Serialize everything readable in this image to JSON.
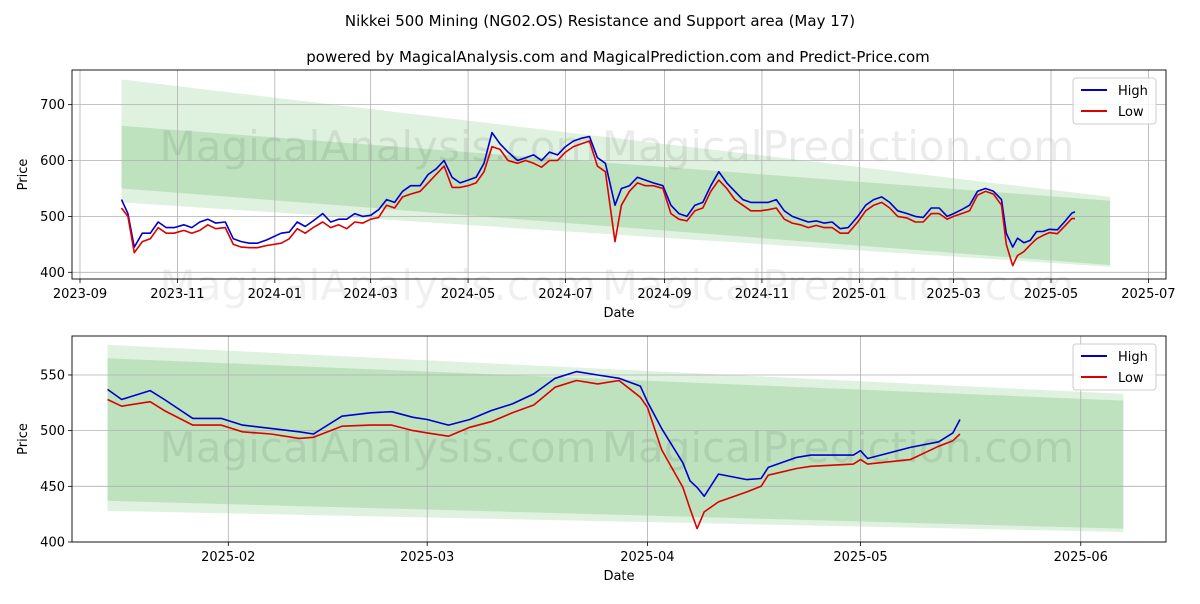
{
  "title": "Nikkei 500 Mining (NG02.OS) Resistance and Support area (May 17)",
  "subtitle": "powered by MagicalAnalysis.com and MagicalPrediction.com and Predict-Price.com",
  "watermark": [
    "MagicalAnalysis.com",
    "MagicalPrediction.com"
  ],
  "colors": {
    "high": "#0000cc",
    "low": "#dd0000",
    "band": "#7fc77f"
  },
  "chart_data": [
    {
      "type": "line",
      "xlabel": "Date",
      "ylabel": "Price",
      "xlim": [
        "2023-08-27",
        "2025-07-12"
      ],
      "ylim": [
        388,
        762
      ],
      "xticks": [
        "2023-09",
        "2023-11",
        "2024-01",
        "2024-03",
        "2024-05",
        "2024-07",
        "2024-09",
        "2024-11",
        "2025-01",
        "2025-03",
        "2025-05",
        "2025-07"
      ],
      "yticks": [
        400,
        500,
        600,
        700
      ],
      "grid": true,
      "legend": "top-right",
      "series": [
        {
          "name": "High",
          "x": [
            "2023-09-27",
            "2023-10-01",
            "2023-10-05",
            "2023-10-10",
            "2023-10-15",
            "2023-10-20",
            "2023-10-25",
            "2023-10-30",
            "2023-11-05",
            "2023-11-10",
            "2023-11-15",
            "2023-11-20",
            "2023-11-25",
            "2023-12-01",
            "2023-12-06",
            "2023-12-11",
            "2023-12-16",
            "2023-12-21",
            "2023-12-27",
            "2024-01-05",
            "2024-01-10",
            "2024-01-15",
            "2024-01-20",
            "2024-01-25",
            "2024-01-31",
            "2024-02-05",
            "2024-02-10",
            "2024-02-15",
            "2024-02-20",
            "2024-02-25",
            "2024-03-01",
            "2024-03-06",
            "2024-03-11",
            "2024-03-16",
            "2024-03-21",
            "2024-03-26",
            "2024-04-01",
            "2024-04-06",
            "2024-04-11",
            "2024-04-16",
            "2024-04-21",
            "2024-04-26",
            "2024-05-01",
            "2024-05-06",
            "2024-05-11",
            "2024-05-16",
            "2024-05-21",
            "2024-05-26",
            "2024-06-01",
            "2024-06-06",
            "2024-06-11",
            "2024-06-16",
            "2024-06-21",
            "2024-06-26",
            "2024-07-01",
            "2024-07-06",
            "2024-07-11",
            "2024-07-16",
            "2024-07-21",
            "2024-07-26",
            "2024-08-01",
            "2024-08-05",
            "2024-08-10",
            "2024-08-15",
            "2024-08-20",
            "2024-08-25",
            "2024-08-31",
            "2024-09-05",
            "2024-09-10",
            "2024-09-15",
            "2024-09-20",
            "2024-09-25",
            "2024-09-30",
            "2024-10-05",
            "2024-10-10",
            "2024-10-15",
            "2024-10-20",
            "2024-10-25",
            "2024-10-31",
            "2024-11-05",
            "2024-11-10",
            "2024-11-15",
            "2024-11-20",
            "2024-11-25",
            "2024-11-30",
            "2024-12-05",
            "2024-12-10",
            "2024-12-15",
            "2024-12-20",
            "2024-12-25",
            "2024-12-31",
            "2025-01-05",
            "2025-01-10",
            "2025-01-15",
            "2025-01-20",
            "2025-01-25",
            "2025-01-31",
            "2025-02-05",
            "2025-02-10",
            "2025-02-15",
            "2025-02-20",
            "2025-02-25",
            "2025-03-01",
            "2025-03-06",
            "2025-03-11",
            "2025-03-16",
            "2025-03-21",
            "2025-03-26",
            "2025-03-31",
            "2025-04-03",
            "2025-04-07",
            "2025-04-10",
            "2025-04-14",
            "2025-04-18",
            "2025-04-22",
            "2025-04-26",
            "2025-04-30",
            "2025-05-05",
            "2025-05-10",
            "2025-05-14",
            "2025-05-16"
          ],
          "values": [
            530,
            505,
            445,
            470,
            470,
            490,
            480,
            480,
            485,
            480,
            490,
            495,
            488,
            490,
            460,
            455,
            452,
            452,
            458,
            470,
            472,
            490,
            482,
            492,
            505,
            490,
            495,
            495,
            505,
            500,
            502,
            512,
            530,
            525,
            545,
            555,
            555,
            575,
            585,
            600,
            570,
            560,
            565,
            570,
            595,
            650,
            630,
            615,
            600,
            605,
            610,
            600,
            615,
            610,
            625,
            635,
            640,
            643,
            605,
            595,
            520,
            550,
            555,
            570,
            565,
            560,
            555,
            520,
            505,
            500,
            520,
            525,
            555,
            580,
            560,
            545,
            530,
            525,
            525,
            525,
            530,
            510,
            500,
            495,
            490,
            492,
            488,
            490,
            478,
            480,
            500,
            520,
            530,
            535,
            525,
            510,
            505,
            500,
            498,
            515,
            515,
            500,
            505,
            512,
            520,
            545,
            550,
            545,
            530,
            470,
            445,
            461,
            453,
            457,
            473,
            473,
            477,
            476,
            492,
            506,
            508
          ]
        },
        {
          "name": "Low",
          "x": [
            "2023-09-27",
            "2023-10-01",
            "2023-10-05",
            "2023-10-10",
            "2023-10-15",
            "2023-10-20",
            "2023-10-25",
            "2023-10-30",
            "2023-11-05",
            "2023-11-10",
            "2023-11-15",
            "2023-11-20",
            "2023-11-25",
            "2023-12-01",
            "2023-12-06",
            "2023-12-11",
            "2023-12-16",
            "2023-12-21",
            "2023-12-27",
            "2024-01-05",
            "2024-01-10",
            "2024-01-15",
            "2024-01-20",
            "2024-01-25",
            "2024-01-31",
            "2024-02-05",
            "2024-02-10",
            "2024-02-15",
            "2024-02-20",
            "2024-02-25",
            "2024-03-01",
            "2024-03-06",
            "2024-03-11",
            "2024-03-16",
            "2024-03-21",
            "2024-03-26",
            "2024-04-01",
            "2024-04-06",
            "2024-04-11",
            "2024-04-16",
            "2024-04-21",
            "2024-04-26",
            "2024-05-01",
            "2024-05-06",
            "2024-05-11",
            "2024-05-16",
            "2024-05-21",
            "2024-05-26",
            "2024-06-01",
            "2024-06-06",
            "2024-06-11",
            "2024-06-16",
            "2024-06-21",
            "2024-06-26",
            "2024-07-01",
            "2024-07-06",
            "2024-07-11",
            "2024-07-16",
            "2024-07-21",
            "2024-07-26",
            "2024-08-01",
            "2024-08-05",
            "2024-08-10",
            "2024-08-15",
            "2024-08-20",
            "2024-08-25",
            "2024-08-31",
            "2024-09-05",
            "2024-09-10",
            "2024-09-15",
            "2024-09-20",
            "2024-09-25",
            "2024-09-30",
            "2024-10-05",
            "2024-10-10",
            "2024-10-15",
            "2024-10-20",
            "2024-10-25",
            "2024-10-31",
            "2024-11-05",
            "2024-11-10",
            "2024-11-15",
            "2024-11-20",
            "2024-11-25",
            "2024-11-30",
            "2024-12-05",
            "2024-12-10",
            "2024-12-15",
            "2024-12-20",
            "2024-12-25",
            "2024-12-31",
            "2025-01-05",
            "2025-01-10",
            "2025-01-15",
            "2025-01-20",
            "2025-01-25",
            "2025-01-31",
            "2025-02-05",
            "2025-02-10",
            "2025-02-15",
            "2025-02-20",
            "2025-02-25",
            "2025-03-01",
            "2025-03-06",
            "2025-03-11",
            "2025-03-16",
            "2025-03-21",
            "2025-03-26",
            "2025-03-31",
            "2025-04-03",
            "2025-04-07",
            "2025-04-10",
            "2025-04-14",
            "2025-04-18",
            "2025-04-22",
            "2025-04-26",
            "2025-04-30",
            "2025-05-05",
            "2025-05-10",
            "2025-05-14",
            "2025-05-16"
          ],
          "values": [
            515,
            500,
            435,
            455,
            460,
            480,
            470,
            470,
            475,
            470,
            475,
            485,
            478,
            480,
            450,
            445,
            444,
            444,
            448,
            452,
            460,
            478,
            470,
            480,
            490,
            480,
            485,
            478,
            490,
            488,
            495,
            498,
            520,
            515,
            535,
            540,
            545,
            560,
            575,
            590,
            552,
            552,
            555,
            560,
            580,
            625,
            620,
            600,
            595,
            600,
            595,
            588,
            600,
            600,
            615,
            625,
            630,
            635,
            590,
            580,
            455,
            520,
            545,
            560,
            555,
            555,
            550,
            505,
            495,
            492,
            510,
            515,
            545,
            565,
            550,
            530,
            520,
            510,
            510,
            512,
            515,
            495,
            488,
            485,
            480,
            484,
            480,
            480,
            470,
            470,
            490,
            510,
            520,
            525,
            515,
            500,
            497,
            490,
            490,
            505,
            505,
            495,
            500,
            505,
            510,
            538,
            545,
            540,
            520,
            450,
            412,
            430,
            437,
            449,
            460,
            466,
            471,
            469,
            484,
            496,
            496
          ]
        }
      ],
      "bands": [
        {
          "x": [
            "2023-09-27",
            "2025-06-07"
          ],
          "upper": [
            745,
            535
          ],
          "lower": [
            525,
            410
          ]
        },
        {
          "x": [
            "2023-09-27",
            "2025-06-07"
          ],
          "upper": [
            662,
            528
          ],
          "lower": [
            550,
            413
          ]
        }
      ]
    },
    {
      "type": "line",
      "xlabel": "Date",
      "ylabel": "Price",
      "xlim": [
        "2025-01-10",
        "2025-06-13"
      ],
      "ylim": [
        400,
        585
      ],
      "xticks": [
        "2025-02",
        "2025-03",
        "2025-04",
        "2025-05",
        "2025-06"
      ],
      "yticks": [
        400,
        450,
        500,
        550
      ],
      "grid": true,
      "legend": "top-right",
      "series": [
        {
          "name": "High",
          "x": [
            "2025-01-15",
            "2025-01-17",
            "2025-01-21",
            "2025-01-23",
            "2025-01-27",
            "2025-01-31",
            "2025-02-03",
            "2025-02-07",
            "2025-02-11",
            "2025-02-13",
            "2025-02-17",
            "2025-02-21",
            "2025-02-24",
            "2025-02-27",
            "2025-03-01",
            "2025-03-04",
            "2025-03-07",
            "2025-03-10",
            "2025-03-13",
            "2025-03-16",
            "2025-03-19",
            "2025-03-22",
            "2025-03-25",
            "2025-03-28",
            "2025-03-31",
            "2025-04-01",
            "2025-04-03",
            "2025-04-06",
            "2025-04-07",
            "2025-04-08",
            "2025-04-09",
            "2025-04-11",
            "2025-04-15",
            "2025-04-17",
            "2025-04-18",
            "2025-04-22",
            "2025-04-24",
            "2025-04-30",
            "2025-05-01",
            "2025-05-02",
            "2025-05-08",
            "2025-05-12",
            "2025-05-14",
            "2025-05-15"
          ],
          "values": [
            537,
            528,
            536,
            528,
            511,
            511,
            505,
            502,
            499,
            497,
            513,
            516,
            517,
            512,
            510,
            505,
            510,
            518,
            524,
            533,
            547,
            553,
            550,
            547,
            540,
            526,
            502,
            471,
            455,
            449,
            441,
            461,
            456,
            457,
            467,
            476,
            478,
            478,
            482,
            475,
            485,
            490,
            498,
            510
          ]
        },
        {
          "name": "Low",
          "x": [
            "2025-01-15",
            "2025-01-17",
            "2025-01-21",
            "2025-01-23",
            "2025-01-27",
            "2025-01-31",
            "2025-02-03",
            "2025-02-07",
            "2025-02-11",
            "2025-02-13",
            "2025-02-17",
            "2025-02-21",
            "2025-02-24",
            "2025-02-27",
            "2025-03-01",
            "2025-03-04",
            "2025-03-07",
            "2025-03-10",
            "2025-03-13",
            "2025-03-16",
            "2025-03-19",
            "2025-03-22",
            "2025-03-25",
            "2025-03-28",
            "2025-03-31",
            "2025-04-01",
            "2025-04-03",
            "2025-04-06",
            "2025-04-07",
            "2025-04-08",
            "2025-04-09",
            "2025-04-11",
            "2025-04-15",
            "2025-04-17",
            "2025-04-18",
            "2025-04-22",
            "2025-04-24",
            "2025-04-30",
            "2025-05-01",
            "2025-05-02",
            "2025-05-08",
            "2025-05-12",
            "2025-05-14",
            "2025-05-15"
          ],
          "values": [
            528,
            522,
            526,
            518,
            505,
            505,
            499,
            497,
            493,
            494,
            504,
            505,
            505,
            500,
            498,
            495,
            503,
            508,
            516,
            523,
            539,
            545,
            542,
            545,
            530,
            521,
            483,
            449,
            430,
            412,
            427,
            436,
            445,
            450,
            460,
            466,
            468,
            470,
            474,
            470,
            474,
            486,
            491,
            497
          ]
        }
      ],
      "bands": [
        {
          "x": [
            "2025-01-15",
            "2025-06-07"
          ],
          "upper": [
            577,
            533
          ],
          "lower": [
            428,
            409
          ]
        },
        {
          "x": [
            "2025-01-15",
            "2025-06-07"
          ],
          "upper": [
            565,
            527
          ],
          "lower": [
            437,
            412
          ]
        }
      ]
    }
  ]
}
